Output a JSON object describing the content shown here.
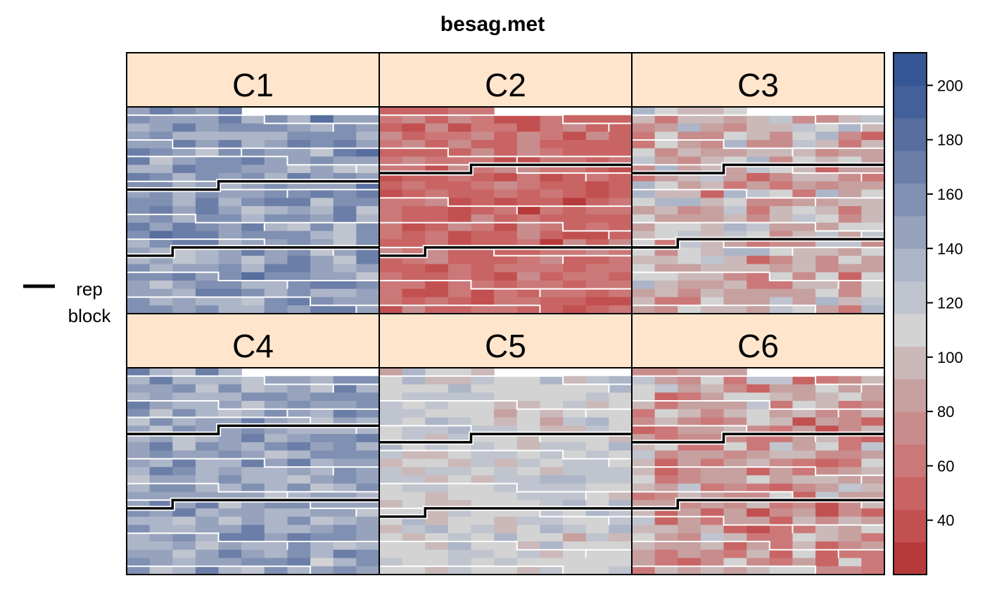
{
  "chart_data": {
    "type": "heatmap",
    "title": "besag.met",
    "legend": {
      "line_label": "rep",
      "line_label2": "block",
      "placement": "left"
    },
    "colorbar": {
      "range": [
        20,
        212
      ],
      "ticks": [
        40,
        60,
        80,
        100,
        120,
        140,
        160,
        180,
        200
      ],
      "palette": [
        "#B73A3A",
        "#C25050",
        "#C96464",
        "#CC7878",
        "#C98C8C",
        "#C7A0A0",
        "#CBB9B9",
        "#D3D3D3",
        "#BFC4CF",
        "#ADB5C8",
        "#97A3BD",
        "#8090B2",
        "#6B7EA8",
        "#576E9F",
        "#43609A",
        "#355795"
      ],
      "placement": "right"
    },
    "grid": {
      "rows": 25,
      "cols": 11,
      "missing": "row 0, cols 5-10"
    },
    "panels": [
      {
        "name": "C1",
        "mean": 150,
        "spread": 22,
        "rep_lines": [
          {
            "row": 10,
            "step_col": 4
          },
          {
            "row": 18,
            "step_col": 2
          }
        ],
        "block_row_steps": [
          [
            0,
            6
          ],
          [
            3,
            2
          ],
          [
            5,
            7
          ],
          [
            8,
            4
          ],
          [
            12,
            3
          ],
          [
            15,
            6
          ],
          [
            19,
            4
          ],
          [
            22,
            8
          ]
        ]
      },
      {
        "name": "C2",
        "mean": 55,
        "spread": 16,
        "rep_lines": [
          {
            "row": 8,
            "step_col": 4
          },
          {
            "row": 18,
            "step_col": 2
          }
        ],
        "block_row_steps": [
          [
            0,
            8
          ],
          [
            4,
            3
          ],
          [
            6,
            6
          ],
          [
            10,
            3
          ],
          [
            13,
            8
          ],
          [
            16,
            5
          ],
          [
            20,
            4
          ],
          [
            23,
            7
          ]
        ]
      },
      {
        "name": "C3",
        "mean": 95,
        "spread": 30,
        "rep_lines": [
          {
            "row": 8,
            "step_col": 4
          },
          {
            "row": 17,
            "step_col": 2
          }
        ],
        "block_row_steps": [
          [
            0,
            8
          ],
          [
            3,
            4
          ],
          [
            6,
            7
          ],
          [
            9,
            5
          ],
          [
            13,
            8
          ],
          [
            15,
            4
          ],
          [
            19,
            6
          ],
          [
            23,
            8
          ]
        ]
      },
      {
        "name": "C4",
        "mean": 145,
        "spread": 20,
        "rep_lines": [
          {
            "row": 8,
            "step_col": 4
          },
          {
            "row": 17,
            "step_col": 2
          }
        ],
        "block_row_steps": [
          [
            0,
            6
          ],
          [
            3,
            4
          ],
          [
            5,
            8
          ],
          [
            10,
            6
          ],
          [
            13,
            4
          ],
          [
            15,
            8
          ],
          [
            19,
            4
          ],
          [
            23,
            8
          ]
        ]
      },
      {
        "name": "C5",
        "mean": 112,
        "spread": 16,
        "rep_lines": [
          {
            "row": 9,
            "step_col": 4
          },
          {
            "row": 18,
            "step_col": 2
          }
        ],
        "block_row_steps": [
          [
            0,
            8
          ],
          [
            3,
            6
          ],
          [
            6,
            4
          ],
          [
            9,
            8
          ],
          [
            13,
            6
          ],
          [
            16,
            7
          ],
          [
            20,
            6
          ],
          [
            23,
            8
          ]
        ]
      },
      {
        "name": "C6",
        "mean": 82,
        "spread": 32,
        "rep_lines": [
          {
            "row": 9,
            "step_col": 4
          },
          {
            "row": 17,
            "step_col": 2
          }
        ],
        "block_row_steps": [
          [
            0,
            8
          ],
          [
            3,
            6
          ],
          [
            6,
            5
          ],
          [
            11,
            8
          ],
          [
            14,
            7
          ],
          [
            17,
            4
          ],
          [
            20,
            6
          ],
          [
            23,
            8
          ]
        ]
      }
    ]
  }
}
